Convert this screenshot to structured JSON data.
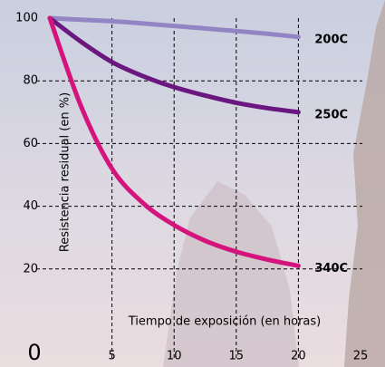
{
  "chart_data": {
    "type": "line",
    "x_label": "Tiempo de exposición (en horas)",
    "y_label": "Resistencia residual (en %)",
    "x": [
      0,
      2.5,
      5,
      7.5,
      10,
      12.5,
      15,
      17.5,
      20
    ],
    "series": [
      {
        "name": "200C",
        "color": "#9385c4",
        "values": [
          100,
          99.5,
          99,
          98.3,
          97.5,
          96.7,
          95.9,
          95,
          94
        ]
      },
      {
        "name": "250C",
        "color": "#6b1780",
        "values": [
          100,
          92.5,
          86,
          81.5,
          78,
          75.3,
          73,
          71.3,
          70
        ]
      },
      {
        "name": "340C",
        "color": "#d4147c",
        "values": [
          100,
          72,
          52,
          41,
          34,
          29,
          25.5,
          23,
          21
        ]
      }
    ],
    "xlim": [
      0,
      25
    ],
    "xticks": [
      0,
      5,
      10,
      15,
      20,
      25
    ],
    "ylim": [
      0,
      100
    ],
    "yticks": [
      20,
      40,
      60,
      80,
      100
    ],
    "grid": true
  }
}
